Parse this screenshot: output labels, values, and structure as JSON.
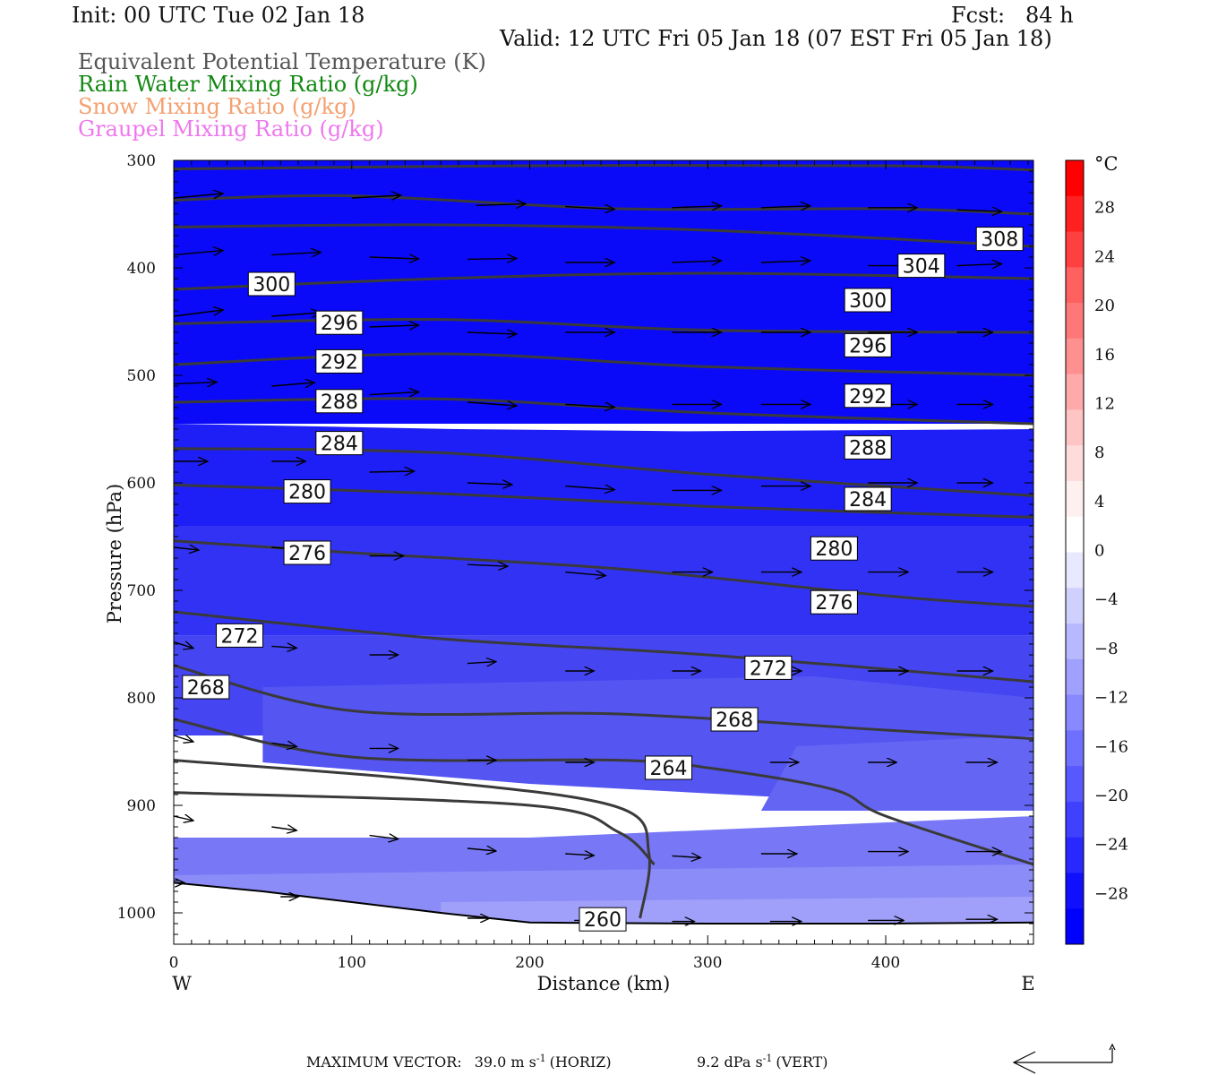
{
  "header": {
    "init": "Init: 00 UTC Tue 02 Jan 18",
    "fcst": "Fcst:   84 h",
    "valid": "Valid: 12 UTC Fri 05 Jan 18 (07 EST Fri 05 Jan 18)",
    "legend": [
      {
        "text": "Equivalent Potential Temperature (K)",
        "color": "#555555"
      },
      {
        "text": "Rain Water Mixing Ratio (g/kg)",
        "color": "#118811"
      },
      {
        "text": "Snow Mixing Ratio (g/kg)",
        "color": "#f4a070"
      },
      {
        "text": "Graupel Mixing Ratio (g/kg)",
        "color": "#ee77ee"
      }
    ]
  },
  "chart_data": {
    "type": "cross-section",
    "xlabel": "Distance (km)",
    "ylabel": "Pressure (hPa)",
    "xlim": [
      0,
      483
    ],
    "ylim": [
      1030,
      300
    ],
    "x_ticks": [
      0,
      100,
      200,
      300,
      400
    ],
    "y_ticks": [
      300,
      400,
      500,
      600,
      700,
      800,
      900,
      1000
    ],
    "x_end_labels": {
      "left": "W",
      "right": "E"
    },
    "colorbar": {
      "unit": "°C",
      "labels": [
        28,
        24,
        20,
        16,
        12,
        8,
        4,
        0,
        -4,
        -8,
        -12,
        -16,
        -20,
        -24,
        -28
      ],
      "colors": [
        "#ff0000",
        "#ff2020",
        "#ff4040",
        "#ff6060",
        "#ff7878",
        "#ff9090",
        "#ffaaaa",
        "#ffc4c4",
        "#ffdcdc",
        "#fff0f0",
        "#ffffff",
        "#e8e8ff",
        "#d0d0ff",
        "#b8b8ff",
        "#a0a0ff",
        "#8888ff",
        "#7070ff",
        "#5858ff",
        "#4040ff",
        "#2828ff",
        "#1010ff",
        "#0000ff"
      ],
      "range": [
        -32,
        32
      ]
    },
    "temperature_bands": [
      {
        "temp": -31,
        "color": "#0a0af8",
        "pts": [
          [
            0,
            300
          ],
          [
            483,
            300
          ],
          [
            483,
            545
          ],
          [
            0,
            545
          ]
        ]
      },
      {
        "temp": -27,
        "color": "#1e1ef6",
        "pts": [
          [
            0,
            545
          ],
          [
            160,
            550
          ],
          [
            290,
            552
          ],
          [
            483,
            550
          ],
          [
            483,
            640
          ],
          [
            0,
            640
          ]
        ]
      },
      {
        "temp": -23,
        "color": "#3232f4",
        "pts": [
          [
            0,
            640
          ],
          [
            483,
            640
          ],
          [
            483,
            742
          ],
          [
            0,
            742
          ]
        ]
      },
      {
        "temp": -19,
        "color": "#4545f2",
        "pts": [
          [
            0,
            742
          ],
          [
            483,
            742
          ],
          [
            483,
            835
          ],
          [
            0,
            835
          ]
        ]
      },
      {
        "temp": -17,
        "color": "#5555f2",
        "pts": [
          [
            50,
            790
          ],
          [
            360,
            780
          ],
          [
            483,
            800
          ],
          [
            483,
            905
          ],
          [
            200,
            880
          ],
          [
            50,
            860
          ]
        ]
      },
      {
        "temp": -15,
        "color": "#6565f4",
        "pts": [
          [
            350,
            845
          ],
          [
            483,
            835
          ],
          [
            483,
            905
          ],
          [
            330,
            905
          ]
        ]
      },
      {
        "temp": -13,
        "color": "#7878f6",
        "pts": [
          [
            0,
            930
          ],
          [
            200,
            930
          ],
          [
            483,
            910
          ],
          [
            483,
            975
          ],
          [
            0,
            975
          ]
        ]
      },
      {
        "temp": -11,
        "color": "#8c8cf8",
        "pts": [
          [
            0,
            965
          ],
          [
            483,
            955
          ],
          [
            483,
            1010
          ],
          [
            0,
            1010
          ]
        ]
      },
      {
        "temp": -9,
        "color": "#a0a0fa",
        "pts": [
          [
            150,
            990
          ],
          [
            483,
            985
          ],
          [
            483,
            1020
          ],
          [
            150,
            1020
          ]
        ]
      }
    ],
    "surface_hPa": [
      [
        0,
        972
      ],
      [
        50,
        980
      ],
      [
        100,
        990
      ],
      [
        150,
        1000
      ],
      [
        200,
        1009
      ],
      [
        300,
        1010
      ],
      [
        400,
        1010
      ],
      [
        483,
        1009
      ]
    ],
    "theta_e_contours_K": [
      {
        "value": 308,
        "pts": [
          [
            0,
            308
          ],
          [
            200,
            305
          ],
          [
            400,
            305
          ],
          [
            483,
            309
          ]
        ]
      },
      {
        "value": 304,
        "pts": [
          [
            0,
            337
          ],
          [
            100,
            333
          ],
          [
            250,
            345
          ],
          [
            400,
            345
          ],
          [
            483,
            350
          ]
        ]
      },
      {
        "value": 300,
        "pts": [
          [
            0,
            362
          ],
          [
            150,
            360
          ],
          [
            300,
            365
          ],
          [
            483,
            380
          ]
        ]
      },
      {
        "value": 300,
        "pts": [
          [
            0,
            420
          ],
          [
            150,
            410
          ],
          [
            300,
            405
          ],
          [
            483,
            410
          ]
        ]
      },
      {
        "value": 296,
        "pts": [
          [
            0,
            452
          ],
          [
            150,
            448
          ],
          [
            300,
            458
          ],
          [
            483,
            460
          ]
        ]
      },
      {
        "value": 292,
        "pts": [
          [
            0,
            490
          ],
          [
            150,
            480
          ],
          [
            300,
            492
          ],
          [
            483,
            500
          ]
        ]
      },
      {
        "value": 288,
        "pts": [
          [
            0,
            525
          ],
          [
            150,
            522
          ],
          [
            300,
            535
          ],
          [
            483,
            545
          ]
        ]
      },
      {
        "value": 284,
        "pts": [
          [
            0,
            568
          ],
          [
            150,
            572
          ],
          [
            300,
            592
          ],
          [
            483,
            612
          ]
        ]
      },
      {
        "value": 280,
        "pts": [
          [
            0,
            602
          ],
          [
            150,
            610
          ],
          [
            300,
            622
          ],
          [
            483,
            632
          ]
        ]
      },
      {
        "value": 276,
        "pts": [
          [
            0,
            654
          ],
          [
            100,
            665
          ],
          [
            250,
            680
          ],
          [
            400,
            705
          ],
          [
            483,
            715
          ]
        ]
      },
      {
        "value": 272,
        "pts": [
          [
            0,
            720
          ],
          [
            150,
            745
          ],
          [
            300,
            760
          ],
          [
            483,
            785
          ]
        ]
      },
      {
        "value": 268,
        "pts": [
          [
            0,
            770
          ],
          [
            100,
            812
          ],
          [
            250,
            815
          ],
          [
            400,
            830
          ],
          [
            483,
            838
          ]
        ]
      },
      {
        "value": 264,
        "pts": [
          [
            0,
            820
          ],
          [
            100,
            855
          ],
          [
            250,
            858
          ],
          [
            300,
            865
          ],
          [
            370,
            885
          ],
          [
            400,
            910
          ],
          [
            483,
            955
          ]
        ]
      },
      {
        "value": 260,
        "pts": [
          [
            0,
            858
          ],
          [
            150,
            878
          ],
          [
            250,
            902
          ],
          [
            267,
            945
          ],
          [
            262,
            1005
          ]
        ]
      },
      {
        "value": 264,
        "pts": [
          [
            0,
            888
          ],
          [
            200,
            900
          ],
          [
            250,
            925
          ],
          [
            270,
            955
          ]
        ]
      }
    ],
    "contour_labels": [
      {
        "value": 308,
        "x": 464,
        "p": 373
      },
      {
        "value": 304,
        "x": 420,
        "p": 398
      },
      {
        "value": 300,
        "x": 55,
        "p": 415
      },
      {
        "value": 300,
        "x": 390,
        "p": 430
      },
      {
        "value": 296,
        "x": 93,
        "p": 451
      },
      {
        "value": 296,
        "x": 390,
        "p": 472
      },
      {
        "value": 292,
        "x": 93,
        "p": 487
      },
      {
        "value": 292,
        "x": 390,
        "p": 519
      },
      {
        "value": 288,
        "x": 93,
        "p": 524
      },
      {
        "value": 288,
        "x": 390,
        "p": 567
      },
      {
        "value": 284,
        "x": 93,
        "p": 563
      },
      {
        "value": 284,
        "x": 390,
        "p": 615
      },
      {
        "value": 280,
        "x": 75,
        "p": 608
      },
      {
        "value": 280,
        "x": 371,
        "p": 661
      },
      {
        "value": 276,
        "x": 75,
        "p": 665
      },
      {
        "value": 276,
        "x": 371,
        "p": 711
      },
      {
        "value": 272,
        "x": 37,
        "p": 742
      },
      {
        "value": 272,
        "x": 334,
        "p": 772
      },
      {
        "value": 268,
        "x": 18,
        "p": 790
      },
      {
        "value": 268,
        "x": 315,
        "p": 820
      },
      {
        "value": 264,
        "x": 278,
        "p": 865
      },
      {
        "value": 260,
        "x": 241,
        "p": 1006
      }
    ],
    "wind_vectors": [
      {
        "x": 0,
        "p": 335,
        "dx": 55,
        "dp": -5
      },
      {
        "x": 100,
        "p": 335,
        "dx": 55,
        "dp": -3
      },
      {
        "x": 170,
        "p": 342,
        "dx": 55,
        "dp": -2
      },
      {
        "x": 220,
        "p": 343,
        "dx": 55,
        "dp": 3
      },
      {
        "x": 280,
        "p": 344,
        "dx": 55,
        "dp": -2
      },
      {
        "x": 330,
        "p": 344,
        "dx": 55,
        "dp": -2
      },
      {
        "x": 390,
        "p": 344,
        "dx": 55,
        "dp": 0
      },
      {
        "x": 440,
        "p": 346,
        "dx": 50,
        "dp": 2
      },
      {
        "x": 0,
        "p": 388,
        "dx": 55,
        "dp": -5
      },
      {
        "x": 55,
        "p": 388,
        "dx": 55,
        "dp": -3
      },
      {
        "x": 110,
        "p": 390,
        "dx": 55,
        "dp": 2
      },
      {
        "x": 165,
        "p": 392,
        "dx": 55,
        "dp": -1
      },
      {
        "x": 220,
        "p": 395,
        "dx": 55,
        "dp": 0
      },
      {
        "x": 280,
        "p": 395,
        "dx": 55,
        "dp": -2
      },
      {
        "x": 330,
        "p": 395,
        "dx": 55,
        "dp": -2
      },
      {
        "x": 390,
        "p": 398,
        "dx": 55,
        "dp": 0
      },
      {
        "x": 440,
        "p": 398,
        "dx": 50,
        "dp": -2
      },
      {
        "x": 0,
        "p": 445,
        "dx": 55,
        "dp": -7
      },
      {
        "x": 55,
        "p": 445,
        "dx": 55,
        "dp": -4
      },
      {
        "x": 110,
        "p": 455,
        "dx": 55,
        "dp": -2
      },
      {
        "x": 165,
        "p": 460,
        "dx": 55,
        "dp": 2
      },
      {
        "x": 220,
        "p": 460,
        "dx": 55,
        "dp": 0
      },
      {
        "x": 280,
        "p": 460,
        "dx": 55,
        "dp": 0
      },
      {
        "x": 330,
        "p": 460,
        "dx": 55,
        "dp": 0
      },
      {
        "x": 390,
        "p": 460,
        "dx": 55,
        "dp": 0
      },
      {
        "x": 440,
        "p": 460,
        "dx": 40,
        "dp": 0
      },
      {
        "x": 0,
        "p": 508,
        "dx": 48,
        "dp": -2
      },
      {
        "x": 55,
        "p": 510,
        "dx": 48,
        "dp": -4
      },
      {
        "x": 110,
        "p": 518,
        "dx": 55,
        "dp": -3
      },
      {
        "x": 165,
        "p": 525,
        "dx": 55,
        "dp": 4
      },
      {
        "x": 220,
        "p": 527,
        "dx": 55,
        "dp": 3
      },
      {
        "x": 280,
        "p": 527,
        "dx": 55,
        "dp": 0
      },
      {
        "x": 330,
        "p": 527,
        "dx": 55,
        "dp": 0
      },
      {
        "x": 390,
        "p": 527,
        "dx": 55,
        "dp": 0
      },
      {
        "x": 440,
        "p": 527,
        "dx": 40,
        "dp": 0
      },
      {
        "x": 0,
        "p": 580,
        "dx": 38,
        "dp": 0
      },
      {
        "x": 55,
        "p": 580,
        "dx": 38,
        "dp": 0
      },
      {
        "x": 110,
        "p": 590,
        "dx": 50,
        "dp": -1
      },
      {
        "x": 165,
        "p": 600,
        "dx": 50,
        "dp": 2
      },
      {
        "x": 220,
        "p": 603,
        "dx": 55,
        "dp": 4
      },
      {
        "x": 280,
        "p": 607,
        "dx": 55,
        "dp": 0
      },
      {
        "x": 330,
        "p": 603,
        "dx": 55,
        "dp": 0
      },
      {
        "x": 390,
        "p": 600,
        "dx": 55,
        "dp": 0
      },
      {
        "x": 440,
        "p": 600,
        "dx": 40,
        "dp": 0
      },
      {
        "x": 0,
        "p": 660,
        "dx": 28,
        "dp": 3
      },
      {
        "x": 55,
        "p": 660,
        "dx": 28,
        "dp": 2
      },
      {
        "x": 110,
        "p": 668,
        "dx": 38,
        "dp": 0
      },
      {
        "x": 165,
        "p": 676,
        "dx": 45,
        "dp": 2
      },
      {
        "x": 220,
        "p": 683,
        "dx": 45,
        "dp": 4
      },
      {
        "x": 280,
        "p": 683,
        "dx": 45,
        "dp": 0
      },
      {
        "x": 330,
        "p": 683,
        "dx": 45,
        "dp": 0
      },
      {
        "x": 390,
        "p": 683,
        "dx": 45,
        "dp": 0
      },
      {
        "x": 440,
        "p": 683,
        "dx": 40,
        "dp": 0
      },
      {
        "x": 0,
        "p": 748,
        "dx": 22,
        "dp": 7
      },
      {
        "x": 55,
        "p": 752,
        "dx": 28,
        "dp": 2
      },
      {
        "x": 110,
        "p": 760,
        "dx": 32,
        "dp": 0
      },
      {
        "x": 165,
        "p": 768,
        "dx": 32,
        "dp": -2
      },
      {
        "x": 220,
        "p": 775,
        "dx": 32,
        "dp": 0
      },
      {
        "x": 280,
        "p": 775,
        "dx": 32,
        "dp": 0
      },
      {
        "x": 330,
        "p": 775,
        "dx": 45,
        "dp": 0
      },
      {
        "x": 390,
        "p": 775,
        "dx": 45,
        "dp": 0
      },
      {
        "x": 440,
        "p": 775,
        "dx": 40,
        "dp": 0
      },
      {
        "x": 0,
        "p": 835,
        "dx": 22,
        "dp": 7
      },
      {
        "x": 55,
        "p": 842,
        "dx": 28,
        "dp": 4
      },
      {
        "x": 110,
        "p": 847,
        "dx": 32,
        "dp": 0
      },
      {
        "x": 165,
        "p": 858,
        "dx": 32,
        "dp": 0
      },
      {
        "x": 220,
        "p": 860,
        "dx": 32,
        "dp": 0
      },
      {
        "x": 270,
        "p": 861,
        "dx": 32,
        "dp": 0
      },
      {
        "x": 335,
        "p": 860,
        "dx": 32,
        "dp": 0
      },
      {
        "x": 390,
        "p": 860,
        "dx": 32,
        "dp": 0
      },
      {
        "x": 445,
        "p": 860,
        "dx": 35,
        "dp": 0
      },
      {
        "x": 0,
        "p": 910,
        "dx": 22,
        "dp": 5
      },
      {
        "x": 55,
        "p": 920,
        "dx": 28,
        "dp": 4
      },
      {
        "x": 110,
        "p": 928,
        "dx": 32,
        "dp": 4
      },
      {
        "x": 165,
        "p": 940,
        "dx": 32,
        "dp": 3
      },
      {
        "x": 220,
        "p": 945,
        "dx": 32,
        "dp": 2
      },
      {
        "x": 280,
        "p": 947,
        "dx": 32,
        "dp": 2
      },
      {
        "x": 330,
        "p": 945,
        "dx": 40,
        "dp": 0
      },
      {
        "x": 390,
        "p": 943,
        "dx": 45,
        "dp": 0
      },
      {
        "x": 445,
        "p": 943,
        "dx": 40,
        "dp": 0
      },
      {
        "x": 0,
        "p": 972,
        "dx": 12,
        "dp": 0
      },
      {
        "x": 60,
        "p": 985,
        "dx": 20,
        "dp": 0
      },
      {
        "x": 165,
        "p": 1005,
        "dx": 25,
        "dp": 0
      },
      {
        "x": 225,
        "p": 1007,
        "dx": 25,
        "dp": 0
      },
      {
        "x": 280,
        "p": 1008,
        "dx": 25,
        "dp": 0
      },
      {
        "x": 335,
        "p": 1008,
        "dx": 35,
        "dp": 0
      },
      {
        "x": 390,
        "p": 1007,
        "dx": 40,
        "dp": 0
      },
      {
        "x": 445,
        "p": 1006,
        "dx": 35,
        "dp": 0
      }
    ]
  },
  "footer": {
    "max_vector_label": "MAXIMUM VECTOR:",
    "horiz_value": "39.0 m s",
    "horiz_exp": "-1",
    "horiz_tag": "(HORIZ)",
    "vert_value": "9.2 dPa s",
    "vert_exp": "-1",
    "vert_tag": "(VERT)"
  }
}
